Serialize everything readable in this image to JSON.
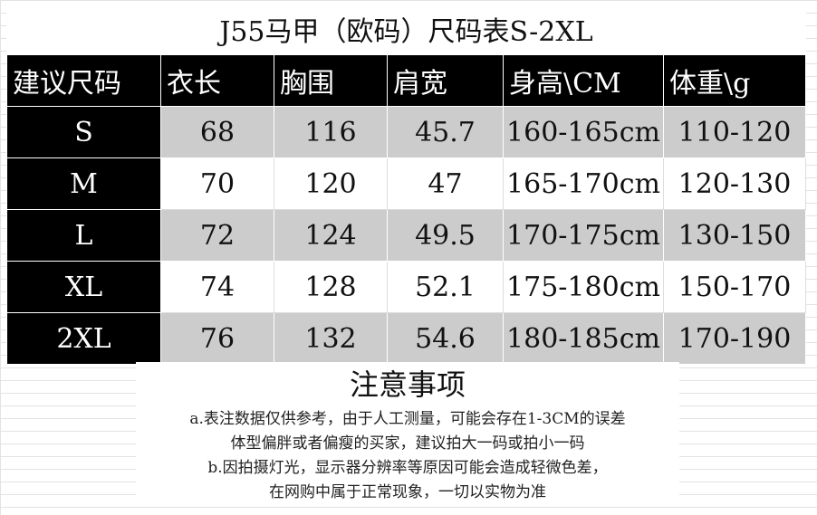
{
  "title": "J55马甲（欧码）尺码表S-2XL",
  "table": {
    "headers": [
      "建议尺码",
      "衣长",
      "胸围",
      "肩宽",
      "身高\\CM",
      "体重\\g"
    ],
    "rows": [
      [
        "S",
        "68",
        "116",
        "45.7",
        "160-165cm",
        "110-120"
      ],
      [
        "M",
        "70",
        "120",
        "47",
        "165-170cm",
        "120-130"
      ],
      [
        "L",
        "72",
        "124",
        "49.5",
        "170-175cm",
        "130-150"
      ],
      [
        "XL",
        "74",
        "128",
        "52.1",
        "175-180cm",
        "150-170"
      ],
      [
        "2XL",
        "76",
        "132",
        "54.6",
        "180-185cm",
        "170-190"
      ]
    ]
  },
  "notes": {
    "title": "注意事项",
    "lines": [
      "a.表注数据仅供参考，由于人工测量，可能会存在1-3CM的误差",
      "体型偏胖或者偏瘦的买家，建议拍大一码或拍小一码",
      "b.因拍摄灯光，显示器分辨率等原因可能会造成轻微色差，",
      "在网购中属于正常现象，一切以实物为准"
    ]
  },
  "colors": {
    "header_bg": "#000000",
    "stripe": "#cccccc"
  }
}
